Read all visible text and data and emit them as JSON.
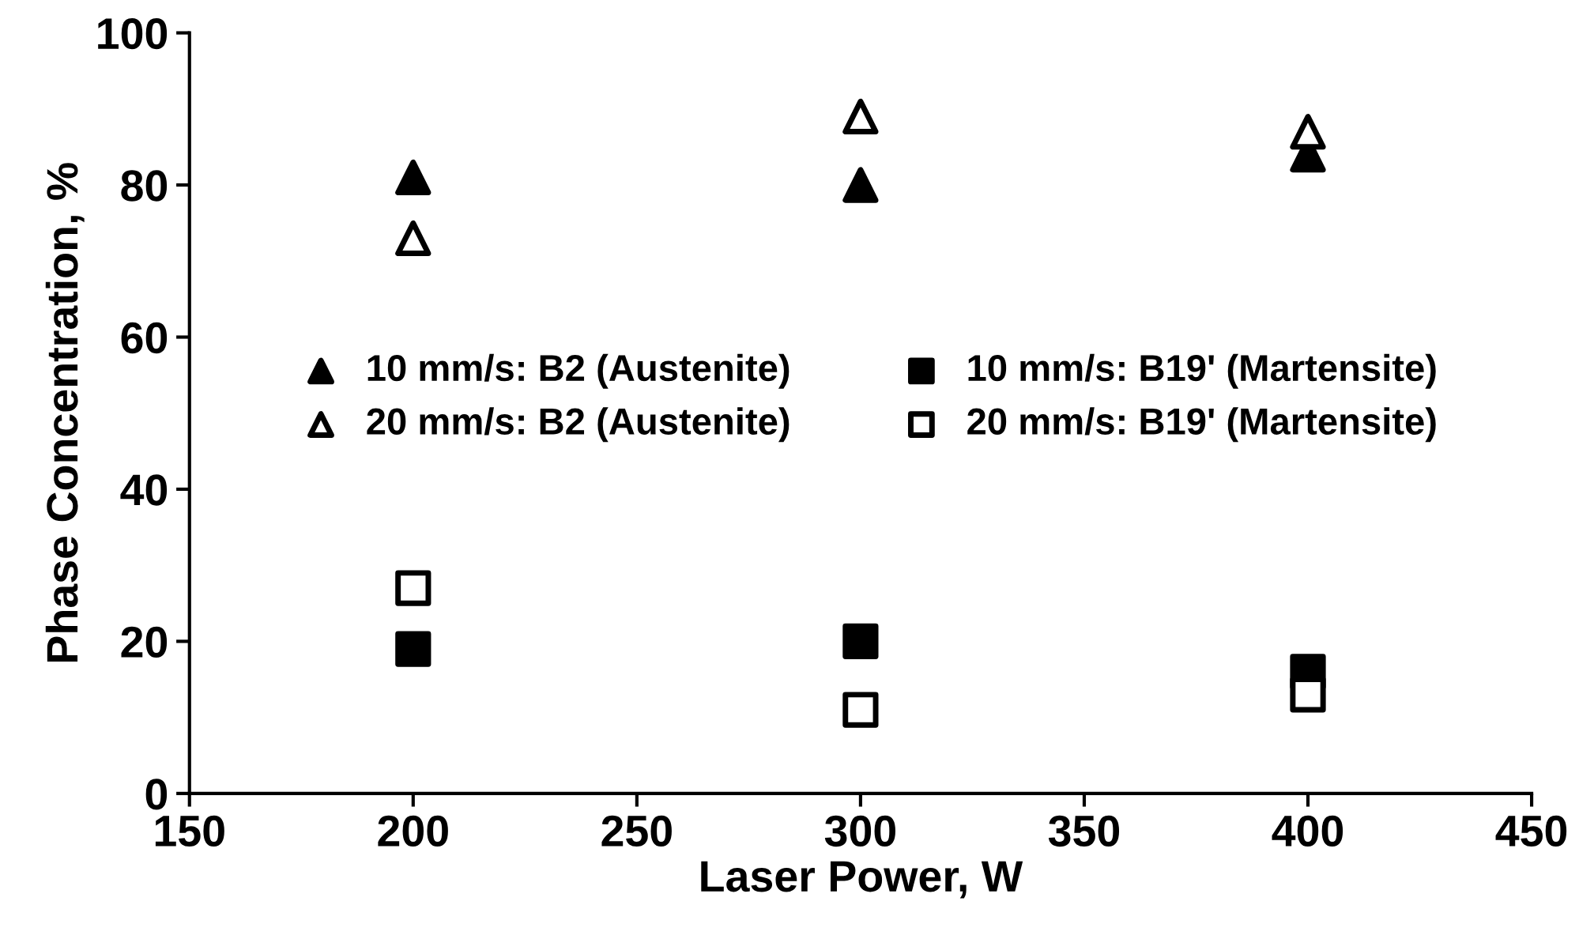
{
  "chart_data": {
    "type": "scatter",
    "xlabel": "Laser Power, W",
    "ylabel": "Phase Concentration, %",
    "x": [
      200,
      300,
      400
    ],
    "series": [
      {
        "name": "10 mm/s: B2 (Austenite)",
        "color": "#000000",
        "marker": "triangle",
        "values": [
          81,
          80,
          84
        ]
      },
      {
        "name": "20 mm/s: B2 (Austenite)",
        "color": "#ffffff",
        "marker": "triangle",
        "values": [
          73,
          89,
          87
        ]
      },
      {
        "name": "10 mm/s: B19' (Martensite)",
        "color": "#000000",
        "marker": "square",
        "values": [
          19,
          20,
          16
        ]
      },
      {
        "name": "20 mm/s: B19' (Martensite)",
        "color": "#ffffff",
        "marker": "square",
        "values": [
          27,
          11,
          13
        ]
      }
    ],
    "xlim": [
      150,
      450
    ],
    "xticks": [
      150,
      200,
      250,
      300,
      350,
      400,
      450
    ],
    "ylim": [
      0,
      100
    ],
    "yticks": [
      0,
      20,
      40,
      60,
      80,
      100
    ],
    "grid": false,
    "legend": "center"
  }
}
